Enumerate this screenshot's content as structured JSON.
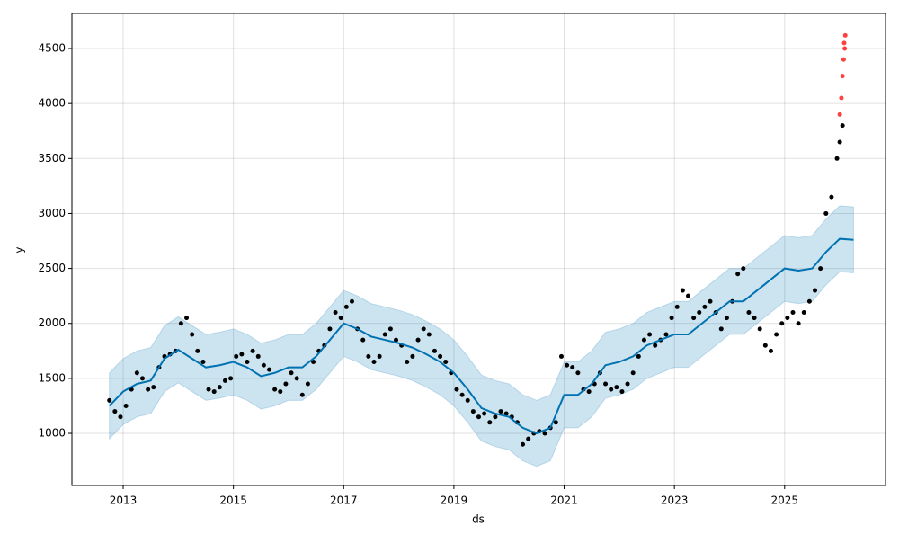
{
  "chart_data": {
    "type": "scatter",
    "xlabel": "ds",
    "ylabel": "y",
    "xlim": [
      2012.07,
      2026.83
    ],
    "ylim": [
      526,
      4819
    ],
    "xticks": [
      2013,
      2015,
      2017,
      2019,
      2021,
      2023,
      2025
    ],
    "yticks": [
      1000,
      1500,
      2000,
      2500,
      3000,
      3500,
      4000,
      4500
    ],
    "grid": true,
    "observed": {
      "color": "#000000",
      "x": [
        2012.75,
        2012.85,
        2012.95,
        2013.05,
        2013.15,
        2013.25,
        2013.35,
        2013.45,
        2013.55,
        2013.65,
        2013.75,
        2013.85,
        2013.95,
        2014.05,
        2014.15,
        2014.25,
        2014.35,
        2014.45,
        2014.55,
        2014.65,
        2014.75,
        2014.85,
        2014.95,
        2015.05,
        2015.15,
        2015.25,
        2015.35,
        2015.45,
        2015.55,
        2015.65,
        2015.75,
        2015.85,
        2015.95,
        2016.05,
        2016.15,
        2016.25,
        2016.35,
        2016.45,
        2016.55,
        2016.65,
        2016.75,
        2016.85,
        2016.95,
        2017.05,
        2017.15,
        2017.25,
        2017.35,
        2017.45,
        2017.55,
        2017.65,
        2017.75,
        2017.85,
        2017.95,
        2018.05,
        2018.15,
        2018.25,
        2018.35,
        2018.45,
        2018.55,
        2018.65,
        2018.75,
        2018.85,
        2018.95,
        2019.05,
        2019.15,
        2019.25,
        2019.35,
        2019.45,
        2019.55,
        2019.65,
        2019.75,
        2019.85,
        2019.95,
        2020.05,
        2020.15,
        2020.25,
        2020.35,
        2020.45,
        2020.55,
        2020.65,
        2020.75,
        2020.85,
        2020.95,
        2021.05,
        2021.15,
        2021.25,
        2021.35,
        2021.45,
        2021.55,
        2021.65,
        2021.75,
        2021.85,
        2021.95,
        2022.05,
        2022.15,
        2022.25,
        2022.35,
        2022.45,
        2022.55,
        2022.65,
        2022.75,
        2022.85,
        2022.95,
        2023.05,
        2023.15,
        2023.25,
        2023.35,
        2023.45,
        2023.55,
        2023.65,
        2023.75,
        2023.85,
        2023.95,
        2024.05,
        2024.15,
        2024.25,
        2024.35,
        2024.45,
        2024.55,
        2024.65,
        2024.75,
        2024.85,
        2024.95,
        2025.05,
        2025.15,
        2025.25,
        2025.35,
        2025.45,
        2025.55,
        2025.65,
        2025.75,
        2025.85,
        2025.95,
        2026.0,
        2026.05
      ],
      "values": [
        1300,
        1200,
        1150,
        1250,
        1400,
        1550,
        1500,
        1400,
        1420,
        1600,
        1700,
        1720,
        1750,
        2000,
        2050,
        1900,
        1750,
        1650,
        1400,
        1380,
        1420,
        1480,
        1500,
        1700,
        1720,
        1650,
        1750,
        1700,
        1620,
        1580,
        1400,
        1380,
        1450,
        1550,
        1500,
        1350,
        1450,
        1650,
        1750,
        1800,
        1950,
        2100,
        2050,
        2150,
        2200,
        1950,
        1850,
        1700,
        1650,
        1700,
        1900,
        1950,
        1850,
        1800,
        1650,
        1700,
        1850,
        1950,
        1900,
        1750,
        1700,
        1650,
        1550,
        1400,
        1350,
        1300,
        1200,
        1150,
        1180,
        1100,
        1150,
        1200,
        1180,
        1150,
        1100,
        900,
        950,
        1000,
        1020,
        1000,
        1050,
        1100,
        1700,
        1620,
        1600,
        1550,
        1400,
        1380,
        1450,
        1550,
        1450,
        1400,
        1420,
        1380,
        1450,
        1550,
        1700,
        1850,
        1900,
        1800,
        1850,
        1900,
        2050,
        2150,
        2300,
        2250,
        2050,
        2100,
        2150,
        2200,
        2100,
        1950,
        2050,
        2200,
        2450,
        2500,
        2100,
        2050,
        1950,
        1800,
        1750,
        1900,
        2000,
        2050,
        2100,
        2000,
        2100,
        2200,
        2300,
        2500,
        3000,
        3150,
        3500,
        3650,
        3800
      ]
    },
    "anomalies": {
      "color": "#ff0000",
      "x": [
        2026.0,
        2026.03,
        2026.05,
        2026.07,
        2026.08,
        2026.09,
        2026.1
      ],
      "values": [
        3900,
        4050,
        4250,
        4400,
        4550,
        4500,
        4620
      ]
    },
    "forecast": {
      "color": "#0072b2",
      "band_color": "#0072b2",
      "x": [
        2012.75,
        2013,
        2013.25,
        2013.5,
        2013.75,
        2014,
        2014.25,
        2014.5,
        2014.75,
        2015,
        2015.25,
        2015.5,
        2015.75,
        2016,
        2016.25,
        2016.5,
        2016.75,
        2017,
        2017.25,
        2017.5,
        2017.75,
        2018,
        2018.25,
        2018.5,
        2018.75,
        2019,
        2019.25,
        2019.5,
        2019.75,
        2020,
        2020.25,
        2020.5,
        2020.75,
        2021,
        2021.25,
        2021.5,
        2021.75,
        2022,
        2022.25,
        2022.5,
        2022.75,
        2023,
        2023.25,
        2023.5,
        2023.75,
        2024,
        2024.25,
        2024.5,
        2024.75,
        2025,
        2025.25,
        2025.5,
        2025.75,
        2026,
        2026.25
      ],
      "values": [
        1250,
        1380,
        1450,
        1480,
        1680,
        1760,
        1680,
        1600,
        1620,
        1650,
        1600,
        1520,
        1550,
        1600,
        1600,
        1700,
        1850,
        2000,
        1950,
        1880,
        1850,
        1820,
        1780,
        1720,
        1650,
        1550,
        1400,
        1230,
        1180,
        1150,
        1050,
        1000,
        1050,
        1350,
        1350,
        1450,
        1620,
        1650,
        1700,
        1800,
        1850,
        1900,
        1900,
        2000,
        2100,
        2200,
        2200,
        2300,
        2400,
        2500,
        2480,
        2500,
        2650,
        2770,
        2760
      ],
      "lower": [
        950,
        1080,
        1150,
        1180,
        1380,
        1460,
        1380,
        1300,
        1320,
        1350,
        1300,
        1220,
        1250,
        1300,
        1300,
        1400,
        1550,
        1700,
        1650,
        1580,
        1550,
        1520,
        1480,
        1420,
        1350,
        1250,
        1100,
        930,
        880,
        850,
        750,
        700,
        750,
        1050,
        1050,
        1150,
        1320,
        1350,
        1400,
        1500,
        1550,
        1600,
        1600,
        1700,
        1800,
        1900,
        1900,
        2000,
        2100,
        2200,
        2180,
        2200,
        2350,
        2470,
        2460
      ],
      "upper": [
        1550,
        1680,
        1750,
        1780,
        1980,
        2060,
        1980,
        1900,
        1920,
        1950,
        1900,
        1820,
        1850,
        1900,
        1900,
        2000,
        2150,
        2300,
        2250,
        2180,
        2150,
        2120,
        2080,
        2020,
        1950,
        1850,
        1700,
        1530,
        1480,
        1450,
        1350,
        1300,
        1350,
        1650,
        1650,
        1750,
        1920,
        1950,
        2000,
        2100,
        2150,
        2200,
        2200,
        2300,
        2400,
        2500,
        2500,
        2600,
        2700,
        2800,
        2780,
        2800,
        2950,
        3070,
        3060
      ]
    }
  }
}
